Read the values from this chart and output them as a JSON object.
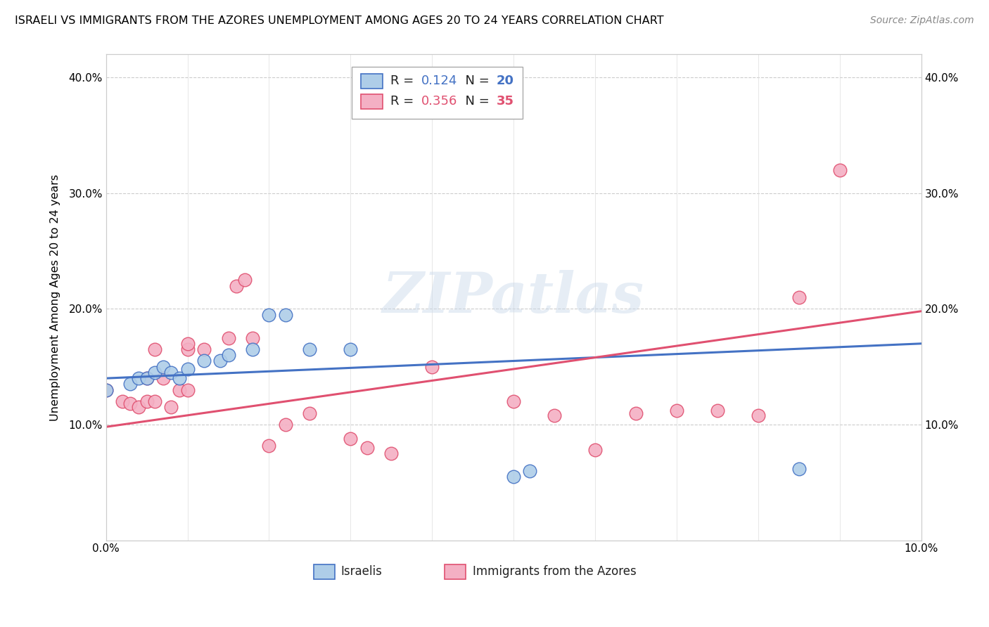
{
  "title": "ISRAELI VS IMMIGRANTS FROM THE AZORES UNEMPLOYMENT AMONG AGES 20 TO 24 YEARS CORRELATION CHART",
  "source": "Source: ZipAtlas.com",
  "ylabel": "Unemployment Among Ages 20 to 24 years",
  "xlim": [
    0.0,
    0.1
  ],
  "ylim": [
    0.0,
    0.42
  ],
  "xticks": [
    0.0,
    0.01,
    0.02,
    0.03,
    0.04,
    0.05,
    0.06,
    0.07,
    0.08,
    0.09,
    0.1
  ],
  "yticks": [
    0.0,
    0.05,
    0.1,
    0.15,
    0.2,
    0.25,
    0.3,
    0.35,
    0.4
  ],
  "ytick_labels": [
    "",
    "",
    "10.0%",
    "",
    "20.0%",
    "",
    "30.0%",
    "",
    "40.0%"
  ],
  "xtick_labels": [
    "0.0%",
    "",
    "",
    "",
    "",
    "",
    "",
    "",
    "",
    "",
    "10.0%"
  ],
  "israeli_R": 0.124,
  "israeli_N": 20,
  "azores_R": 0.356,
  "azores_N": 35,
  "israeli_color": "#aecde8",
  "azores_color": "#f4b0c4",
  "israeli_edge_color": "#4472c4",
  "azores_edge_color": "#e05070",
  "israeli_line_color": "#4472c4",
  "azores_line_color": "#e05070",
  "watermark_text": "ZIPatlas",
  "israeli_x": [
    0.0,
    0.003,
    0.004,
    0.005,
    0.006,
    0.007,
    0.008,
    0.009,
    0.01,
    0.012,
    0.014,
    0.015,
    0.018,
    0.02,
    0.022,
    0.025,
    0.03,
    0.05,
    0.052,
    0.085
  ],
  "israeli_y": [
    0.13,
    0.135,
    0.14,
    0.14,
    0.145,
    0.15,
    0.145,
    0.14,
    0.148,
    0.155,
    0.155,
    0.16,
    0.165,
    0.195,
    0.195,
    0.165,
    0.165,
    0.055,
    0.06,
    0.062
  ],
  "azores_x": [
    0.0,
    0.002,
    0.003,
    0.004,
    0.005,
    0.005,
    0.006,
    0.006,
    0.007,
    0.008,
    0.009,
    0.01,
    0.01,
    0.01,
    0.012,
    0.015,
    0.016,
    0.017,
    0.018,
    0.02,
    0.022,
    0.025,
    0.03,
    0.032,
    0.035,
    0.04,
    0.05,
    0.055,
    0.06,
    0.065,
    0.07,
    0.075,
    0.08,
    0.085,
    0.09
  ],
  "azores_y": [
    0.13,
    0.12,
    0.118,
    0.115,
    0.12,
    0.14,
    0.12,
    0.165,
    0.14,
    0.115,
    0.13,
    0.13,
    0.165,
    0.17,
    0.165,
    0.175,
    0.22,
    0.225,
    0.175,
    0.082,
    0.1,
    0.11,
    0.088,
    0.08,
    0.075,
    0.15,
    0.12,
    0.108,
    0.078,
    0.11,
    0.112,
    0.112,
    0.108,
    0.21,
    0.32
  ],
  "israeli_line_x0": 0.0,
  "israeli_line_y0": 0.14,
  "israeli_line_x1": 0.1,
  "israeli_line_y1": 0.17,
  "azores_line_x0": 0.0,
  "azores_line_y0": 0.098,
  "azores_line_x1": 0.1,
  "azores_line_y1": 0.198
}
